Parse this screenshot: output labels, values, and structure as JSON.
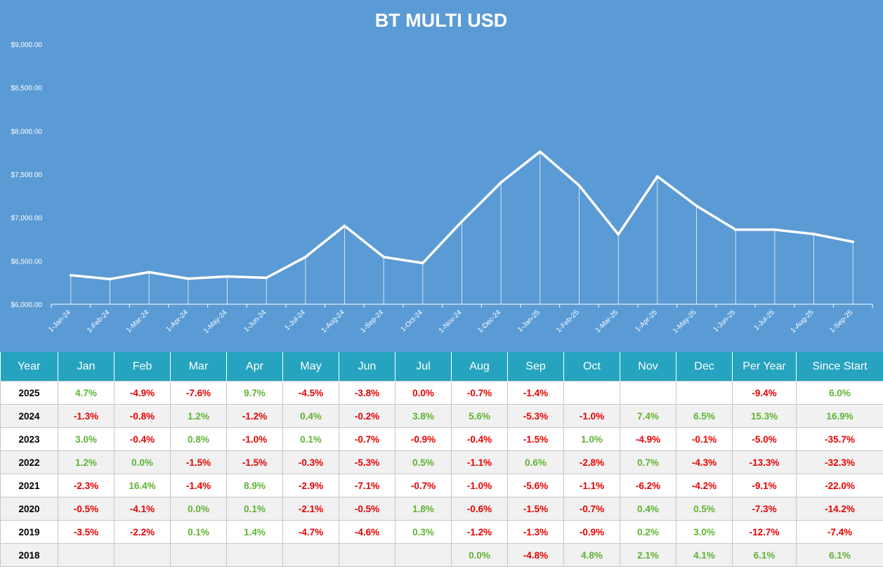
{
  "chart_data": {
    "type": "line",
    "title": "BT MULTI USD",
    "xlabel": "",
    "ylabel": "",
    "ylim": [
      6000,
      9000
    ],
    "yticks": [
      "$6,000.00",
      "$6,500.00",
      "$7,000.00",
      "$7,500.00",
      "$8,000.00",
      "$8,500.00",
      "$9,000.00"
    ],
    "ytick_values": [
      6000,
      6500,
      7000,
      7500,
      8000,
      8500,
      9000
    ],
    "categories": [
      "1-Jan-24",
      "1-Feb-24",
      "1-Mar-24",
      "1-Apr-24",
      "1-May-24",
      "1-Jun-24",
      "1-Jul-24",
      "1-Aug-24",
      "1-Sep-24",
      "1-Oct-24",
      "1-Nov-24",
      "1-Dec-24",
      "1-Jan-25",
      "1-Feb-25",
      "1-Mar-25",
      "1-Apr-25",
      "1-May-25",
      "1-Jun-25",
      "1-Jul-25",
      "1-Aug-25",
      "1-Sep-25"
    ],
    "values": [
      6335,
      6290,
      6370,
      6295,
      6320,
      6305,
      6545,
      6905,
      6545,
      6475,
      6955,
      7405,
      7760,
      7370,
      6805,
      7475,
      7135,
      6860,
      6860,
      6810,
      6720
    ],
    "colors": {
      "background": "#5b9bd5",
      "line": "#ffffff"
    }
  },
  "table": {
    "headers": [
      "Year",
      "Jan",
      "Feb",
      "Mar",
      "Apr",
      "May",
      "Jun",
      "Jul",
      "Aug",
      "Sep",
      "Oct",
      "Nov",
      "Dec",
      "Per Year",
      "Since Start"
    ],
    "rows": [
      {
        "year": "2025",
        "cells": [
          "4.7%",
          "-4.9%",
          "-7.6%",
          "9.7%",
          "-4.5%",
          "-3.8%",
          "0.0%",
          "-0.7%",
          "-1.4%",
          "",
          "",
          "",
          "-9.4%",
          "6.0%"
        ]
      },
      {
        "year": "2024",
        "cells": [
          "-1.3%",
          "-0.8%",
          "1.2%",
          "-1.2%",
          "0.4%",
          "-0.2%",
          "3.8%",
          "5.6%",
          "-5.3%",
          "-1.0%",
          "7.4%",
          "6.5%",
          "15.3%",
          "16.9%"
        ]
      },
      {
        "year": "2023",
        "cells": [
          "3.0%",
          "-0.4%",
          "0.8%",
          "-1.0%",
          "0.1%",
          "-0.7%",
          "-0.9%",
          "-0.4%",
          "-1.5%",
          "1.0%",
          "-4.9%",
          "-0.1%",
          "-5.0%",
          "-35.7%"
        ]
      },
      {
        "year": "2022",
        "cells": [
          "1.2%",
          "0.0%",
          "-1.5%",
          "-1.5%",
          "-0.3%",
          "-5.3%",
          "0.5%",
          "-1.1%",
          "0.6%",
          "-2.8%",
          "0.7%",
          "-4.3%",
          "-13.3%",
          "-32.3%"
        ]
      },
      {
        "year": "2021",
        "cells": [
          "-2.3%",
          "16.4%",
          "-1.4%",
          "8.9%",
          "-2.9%",
          "-7.1%",
          "-0.7%",
          "-1.0%",
          "-5.6%",
          "-1.1%",
          "-6.2%",
          "-4.2%",
          "-9.1%",
          "-22.0%"
        ]
      },
      {
        "year": "2020",
        "cells": [
          "-0.5%",
          "-4.1%",
          "0.0%",
          "0.1%",
          "-2.1%",
          "-0.5%",
          "1.8%",
          "-0.6%",
          "-1.5%",
          "-0.7%",
          "0.4%",
          "0.5%",
          "-7.3%",
          "-14.2%"
        ]
      },
      {
        "year": "2019",
        "cells": [
          "-3.5%",
          "-2.2%",
          "0.1%",
          "1.4%",
          "-4.7%",
          "-4.6%",
          "0.3%",
          "-1.2%",
          "-1.3%",
          "-0.9%",
          "0.2%",
          "3.0%",
          "-12.7%",
          "-7.4%"
        ]
      },
      {
        "year": "2018",
        "cells": [
          "",
          "",
          "",
          "",
          "",
          "",
          "",
          "0.0%",
          "-4.8%",
          "4.8%",
          "2.1%",
          "4.1%",
          "6.1%",
          "6.1%"
        ]
      }
    ],
    "colors": {
      "header_bg": "#26a3bf",
      "positive": "#5fb332",
      "negative": "#e80000",
      "zero_2025": "#e80000"
    }
  }
}
